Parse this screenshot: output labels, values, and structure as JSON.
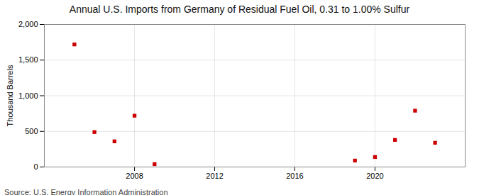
{
  "chart_data": {
    "type": "scatter",
    "title": "Annual U.S. Imports from Germany of Residual Fuel Oil, 0.31 to 1.00% Sulfur",
    "ylabel": "Thousand Barrels",
    "source": "Source: U.S. Energy Information Administration",
    "x": [
      2005,
      2006,
      2007,
      2008,
      2009,
      2019,
      2020,
      2021,
      2022,
      2023
    ],
    "values": [
      1720,
      490,
      360,
      720,
      40,
      90,
      140,
      380,
      790,
      340
    ],
    "color": "#cc0000",
    "marker": "square",
    "xlim": [
      2003.5,
      2024.5
    ],
    "xticks": [
      2008,
      2012,
      2016,
      2020
    ],
    "ylim": [
      0,
      2000
    ],
    "yticks": [
      0,
      500,
      {
        "value": 1000,
        "label": "1,000"
      },
      {
        "value": 1500,
        "label": "1,500"
      },
      {
        "value": 2000,
        "label": "2,000"
      }
    ],
    "grid": true
  }
}
